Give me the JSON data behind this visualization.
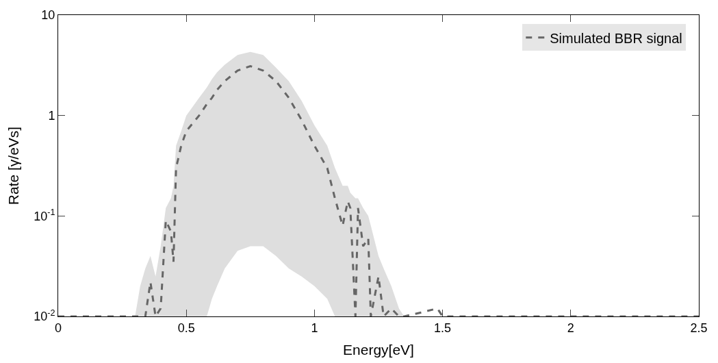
{
  "chart_data": {
    "type": "line",
    "xlabel": "Energy[eV]",
    "ylabel": "Rate [γ/eVs]",
    "log": "y",
    "legend": "top right",
    "line_style": "dashed",
    "marker": "none",
    "xlim": [
      0,
      2.5
    ],
    "xticks": [
      0,
      0.5,
      1,
      1.5,
      2,
      2.5
    ],
    "ylim": [
      0.01,
      10
    ],
    "yticks": [
      {
        "value": 0.01,
        "label": "10$^{-2}$"
      },
      {
        "value": 0.1,
        "label": "10$^{-1}$"
      },
      1,
      10
    ],
    "series": [
      {
        "name": "Simulated BBR signal",
        "color": "#666666",
        "x": [
          0,
          0.3,
          0.32,
          0.34,
          0.36,
          0.38,
          0.4,
          0.42,
          0.44,
          0.45,
          0.46,
          0.48,
          0.5,
          0.55,
          0.58,
          0.6,
          0.62,
          0.65,
          0.7,
          0.75,
          0.8,
          0.85,
          0.9,
          0.95,
          1.0,
          1.05,
          1.08,
          1.11,
          1.13,
          1.14,
          1.16,
          1.17,
          1.19,
          1.21,
          1.22,
          1.25,
          1.27,
          1.3,
          1.33,
          1.35,
          1.42,
          1.48,
          1.5,
          2.5
        ],
        "values": [
          0.01,
          0.01,
          0.01,
          0.01,
          0.022,
          0.01,
          0.012,
          0.09,
          0.07,
          0.035,
          0.3,
          0.5,
          0.7,
          1.0,
          1.3,
          1.5,
          1.8,
          2.2,
          2.8,
          3.1,
          2.8,
          2.2,
          1.5,
          0.9,
          0.5,
          0.3,
          0.15,
          0.08,
          0.14,
          0.12,
          0.01,
          0.12,
          0.05,
          0.06,
          0.01,
          0.025,
          0.01,
          0.012,
          0.01,
          0.01,
          0.011,
          0.012,
          0.01,
          0.01
        ],
        "upper": [
          0.01,
          0.01,
          0.02,
          0.03,
          0.04,
          0.025,
          0.05,
          0.12,
          0.15,
          0.2,
          0.5,
          0.7,
          1.0,
          1.5,
          1.9,
          2.3,
          2.7,
          3.2,
          4.0,
          4.3,
          4.0,
          3.0,
          2.2,
          1.4,
          0.8,
          0.5,
          0.3,
          0.2,
          0.2,
          0.17,
          0.15,
          0.15,
          0.12,
          0.1,
          0.08,
          0.04,
          0.03,
          0.02,
          0.012,
          0.01,
          0.01,
          0.01,
          0.01,
          0.01
        ],
        "lower": [
          0.01,
          0.01,
          0.01,
          0.01,
          0.01,
          0.01,
          0.01,
          0.01,
          0.01,
          0.01,
          0.01,
          0.01,
          0.01,
          0.01,
          0.01,
          0.015,
          0.02,
          0.03,
          0.045,
          0.05,
          0.05,
          0.04,
          0.03,
          0.025,
          0.02,
          0.015,
          0.01,
          0.01,
          0.01,
          0.01,
          0.01,
          0.01,
          0.01,
          0.01,
          0.01,
          0.01,
          0.01,
          0.01,
          0.01,
          0.01,
          0.01,
          0.01,
          0.01,
          0.01
        ]
      }
    ]
  }
}
